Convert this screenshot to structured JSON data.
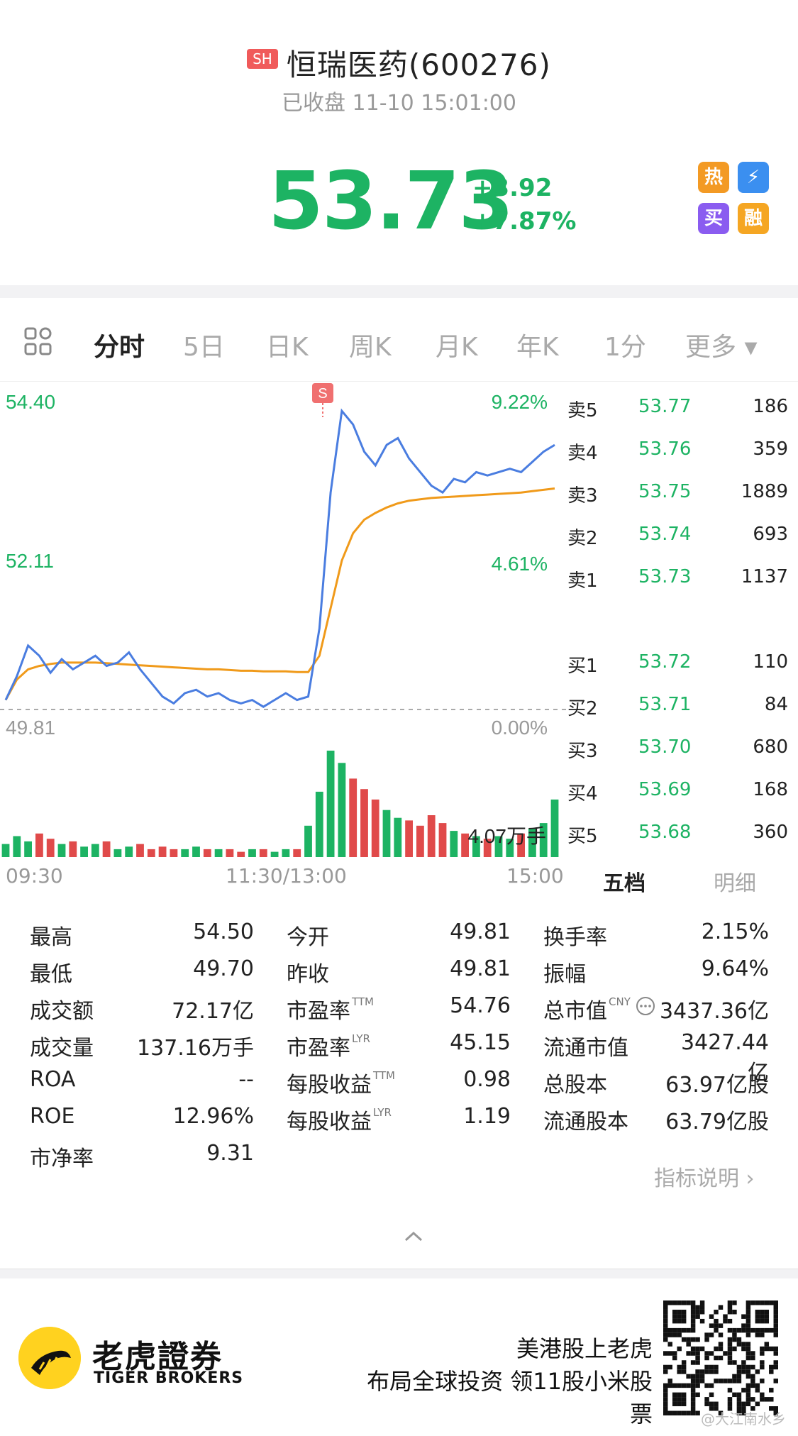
{
  "header": {
    "market_badge": "SH",
    "stock_name": "恒瑞医药(600276)",
    "status": "已收盘 11-10 15:01:00",
    "price": "53.73",
    "change_abs": "+3.92",
    "change_pct": "+7.87%",
    "quick_icons": [
      {
        "name": "hot-icon",
        "glyph": "热"
      },
      {
        "name": "lightning-icon",
        "glyph": "⚡"
      },
      {
        "name": "buy-icon",
        "glyph": "买"
      },
      {
        "name": "margin-icon",
        "glyph": "融"
      }
    ]
  },
  "tabs": [
    {
      "label": "分时",
      "active": true
    },
    {
      "label": "5日",
      "active": false
    },
    {
      "label": "日K",
      "active": false
    },
    {
      "label": "周K",
      "active": false
    },
    {
      "label": "月K",
      "active": false
    },
    {
      "label": "年K",
      "active": false
    },
    {
      "label": "1分",
      "active": false
    },
    {
      "label": "更多 ▾",
      "active": false
    }
  ],
  "chart_labels": {
    "y_high": "54.40",
    "y_mid": "52.11",
    "y_low": "49.81",
    "pct_high": "9.22%",
    "pct_mid": "4.61%",
    "pct_low": "0.00%",
    "volume_max": "4.07万手",
    "signal_marker": "S"
  },
  "chart_data": {
    "type": "line",
    "x_ticks": [
      "09:30",
      "11:30/13:00",
      "15:00"
    ],
    "ylim": [
      49.81,
      54.4
    ],
    "y_ticks": [
      "49.81",
      "52.11",
      "54.40"
    ],
    "right_ticks": [
      "0.00%",
      "4.61%",
      "9.22%"
    ],
    "series": [],
    "price": [
      49.95,
      50.3,
      50.75,
      50.6,
      50.35,
      50.55,
      50.4,
      50.5,
      50.6,
      50.45,
      50.5,
      50.65,
      50.4,
      50.2,
      50.0,
      49.9,
      50.05,
      50.1,
      50.0,
      50.05,
      49.95,
      49.9,
      49.95,
      49.85,
      49.95,
      50.05,
      49.95,
      50.0,
      51.0,
      53.0,
      54.2,
      54.0,
      53.6,
      53.4,
      53.7,
      53.8,
      53.5,
      53.3,
      53.1,
      53.0,
      53.2,
      53.15,
      53.3,
      53.25,
      53.3,
      53.35,
      53.3,
      53.45,
      53.6,
      53.7
    ],
    "avg_price": [
      49.95,
      50.25,
      50.4,
      50.45,
      50.48,
      50.5,
      50.5,
      50.5,
      50.5,
      50.49,
      50.48,
      50.47,
      50.46,
      50.45,
      50.44,
      50.43,
      50.42,
      50.41,
      50.4,
      50.4,
      50.39,
      50.38,
      50.38,
      50.37,
      50.37,
      50.37,
      50.36,
      50.36,
      50.6,
      51.3,
      52.0,
      52.4,
      52.6,
      52.7,
      52.78,
      52.84,
      52.88,
      52.9,
      52.92,
      52.93,
      52.94,
      52.95,
      52.96,
      52.97,
      52.98,
      52.99,
      53.0,
      53.02,
      53.04,
      53.06
    ],
    "volume": [
      0.5,
      0.8,
      0.6,
      0.9,
      0.7,
      0.5,
      0.6,
      0.4,
      0.5,
      0.6,
      0.3,
      0.4,
      0.5,
      0.3,
      0.4,
      0.3,
      0.3,
      0.4,
      0.3,
      0.3,
      0.3,
      0.2,
      0.3,
      0.3,
      0.2,
      0.3,
      0.3,
      1.2,
      2.5,
      4.07,
      3.6,
      3.0,
      2.6,
      2.2,
      1.8,
      1.5,
      1.4,
      1.2,
      1.6,
      1.3,
      1.0,
      0.9,
      0.8,
      0.7,
      0.8,
      0.7,
      0.9,
      1.1,
      1.3,
      2.2
    ]
  },
  "orderbook": {
    "asks": [
      {
        "label": "卖5",
        "price": "53.77",
        "qty": "186"
      },
      {
        "label": "卖4",
        "price": "53.76",
        "qty": "359"
      },
      {
        "label": "卖3",
        "price": "53.75",
        "qty": "1889"
      },
      {
        "label": "卖2",
        "price": "53.74",
        "qty": "693"
      },
      {
        "label": "卖1",
        "price": "53.73",
        "qty": "1137"
      }
    ],
    "bids": [
      {
        "label": "买1",
        "price": "53.72",
        "qty": "110"
      },
      {
        "label": "买2",
        "price": "53.71",
        "qty": "84"
      },
      {
        "label": "买3",
        "price": "53.70",
        "qty": "680"
      },
      {
        "label": "买4",
        "price": "53.69",
        "qty": "168"
      },
      {
        "label": "买5",
        "price": "53.68",
        "qty": "360"
      }
    ],
    "tab_five": "五档",
    "tab_detail": "明细"
  },
  "stats": {
    "col1": [
      {
        "label": "最高",
        "value": "54.50"
      },
      {
        "label": "最低",
        "value": "49.70"
      },
      {
        "label": "成交额",
        "value": "72.17亿"
      },
      {
        "label": "成交量",
        "value": "137.16万手"
      },
      {
        "label": "ROA",
        "value": "--"
      },
      {
        "label": "ROE",
        "value": "12.96%"
      },
      {
        "label": "市净率",
        "value": "9.31"
      }
    ],
    "col2": [
      {
        "label": "今开",
        "sup": "",
        "value": "49.81"
      },
      {
        "label": "昨收",
        "sup": "",
        "value": "49.81"
      },
      {
        "label": "市盈率",
        "sup": "TTM",
        "value": "54.76"
      },
      {
        "label": "市盈率",
        "sup": "LYR",
        "value": "45.15"
      },
      {
        "label": "每股收益",
        "sup": "TTM",
        "value": "0.98"
      },
      {
        "label": "每股收益",
        "sup": "LYR",
        "value": "1.19"
      }
    ],
    "col3": [
      {
        "label": "换手率",
        "sup": "",
        "value": "2.15%"
      },
      {
        "label": "振幅",
        "sup": "",
        "value": "9.64%"
      },
      {
        "label": "总市值",
        "sup": "CNY",
        "value": "3437.36亿"
      },
      {
        "label": "流通市值",
        "sup": "",
        "value": "3427.44亿"
      },
      {
        "label": "总股本",
        "sup": "",
        "value": "63.97亿股"
      },
      {
        "label": "流通股本",
        "sup": "",
        "value": "63.79亿股"
      }
    ],
    "indicator_link": "指标说明 ›"
  },
  "ad": {
    "brand_cn": "老虎證券",
    "brand_en": "TIGER BROKERS",
    "line1": "美港股上老虎",
    "line2": "布局全球投资 领11股小米股票",
    "watermark": "@大江南水乡"
  },
  "colors": {
    "up": "#1db363",
    "down": "#e04a4a",
    "price_line": "#4a7de0",
    "avg_line": "#f09a1a"
  }
}
